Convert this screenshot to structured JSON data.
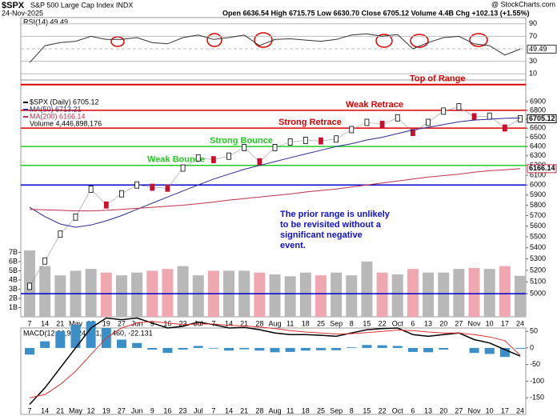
{
  "chart_data": {
    "type": "stock",
    "header": {
      "symbol": "$SPX",
      "name": "S&P 500 Large Cap Index INDX",
      "credit": "@ StockCharts.com",
      "date": "24-Nov-2025",
      "quote": "Open 6636.54   High 6715.75   Low 6630.70   Close 6705.12   Volume 4.4B   Chg +102.13 (+1.55%)"
    },
    "categories": [
      "7",
      "14",
      "21",
      "May",
      "12",
      "19",
      "27",
      "Jun",
      "9",
      "16",
      "23",
      "Jul",
      "7",
      "14",
      "21",
      "28",
      "Aug",
      "11",
      "18",
      "25",
      "Sep",
      "8",
      "15",
      "22",
      "Oct",
      "6",
      "13",
      "20",
      "27",
      "Nov",
      "10",
      "17",
      "24"
    ],
    "price": {
      "log": true,
      "ylim": [
        4810,
        7155
      ],
      "yticks": [
        5000,
        5100,
        5200,
        5300,
        5400,
        5500,
        5600,
        5700,
        5800,
        5900,
        6000,
        6100,
        6200,
        6300,
        6400,
        6500,
        6600,
        6700,
        6800,
        6900
      ],
      "series": [
        {
          "name": "$SPX (Daily) 6705.12",
          "color": "#000000",
          "values": [
            5062,
            5282,
            5525,
            5686,
            5958,
            5802,
            5912,
            6000,
            5977,
            5967,
            6173,
            6279,
            6260,
            6297,
            6389,
            6238,
            6389,
            6449,
            6466,
            6460,
            6481,
            6584,
            6664,
            6643,
            6715,
            6552,
            6664,
            6791,
            6840,
            6728,
            6734,
            6602,
            6705.12
          ]
        },
        {
          "name": "MA(50) 6713.21",
          "color": "#2b2b8f",
          "values": [
            5780,
            5690,
            5620,
            5590,
            5610,
            5650,
            5700,
            5760,
            5820,
            5880,
            5940,
            6000,
            6060,
            6110,
            6160,
            6200,
            6240,
            6280,
            6320,
            6360,
            6400,
            6430,
            6470,
            6500,
            6540,
            6580,
            6610,
            6640,
            6670,
            6690,
            6700,
            6710,
            6713.21
          ]
        },
        {
          "name": "MA(200) 6166.14",
          "color": "#c0304a",
          "values": [
            5760,
            5755,
            5750,
            5745,
            5745,
            5750,
            5760,
            5770,
            5780,
            5790,
            5800,
            5815,
            5830,
            5850,
            5865,
            5880,
            5895,
            5910,
            5930,
            5945,
            5960,
            5980,
            6000,
            6020,
            6040,
            6060,
            6080,
            6095,
            6110,
            6130,
            6145,
            6155,
            6166.14
          ]
        }
      ]
    },
    "volume": {
      "name": "Volume 4,446,898,176",
      "ylim": [
        0,
        25700000000
      ],
      "up_color": "#b8b8b8",
      "down_color": "#f0a8b0",
      "yticks": [
        {
          "value": 1000000000,
          "label": "1B"
        },
        {
          "value": 2000000000,
          "label": "2B"
        },
        {
          "value": 3000000000,
          "label": "3B"
        },
        {
          "value": 4000000000,
          "label": "4B"
        },
        {
          "value": 5000000000,
          "label": "5B"
        },
        {
          "value": 6000000000,
          "label": "6B"
        },
        {
          "value": 7000000000,
          "label": "7B"
        }
      ],
      "values": [
        7200000000,
        5500000000,
        4500000000,
        5000000000,
        5200000000,
        4800000000,
        4500000000,
        4800000000,
        5000000000,
        5200000000,
        5500000000,
        4500000000,
        5000000000,
        5000000000,
        5000000000,
        4800000000,
        4600000000,
        4400000000,
        4800000000,
        4500000000,
        4800000000,
        4500000000,
        6000000000,
        4800000000,
        4600000000,
        5200000000,
        4800000000,
        4800000000,
        5200000000,
        5300000000,
        5200000000,
        5500000000,
        4446898176
      ]
    },
    "levels": [
      {
        "label": "Top of Range",
        "value": 7100,
        "color": "#dd0000"
      },
      {
        "label": "Weak Retrace",
        "value": 6800,
        "color": "#dd0000"
      },
      {
        "label": "Strong Retrace",
        "value": 6600,
        "color": "#dd0000"
      },
      {
        "label": "Strong Bounce",
        "value": 6400,
        "color": "#22cc22"
      },
      {
        "label": "Weak Bounce",
        "value": 6200,
        "color": "#22cc22"
      },
      {
        "value": 6000,
        "color": "#0000cc"
      },
      {
        "value": 5000,
        "color": "#0000cc"
      }
    ],
    "note": [
      "The prior range is unlikely",
      "to be revisited without a",
      "significant negative",
      "event."
    ],
    "rsi": {
      "name": "RSI(14) 49.49",
      "ylim": [
        0,
        100
      ],
      "yticks": [
        90,
        70,
        50,
        30,
        10
      ],
      "color": "#333333",
      "values": [
        28,
        55,
        60,
        62,
        70,
        65,
        65,
        68,
        60,
        58,
        68,
        72,
        65,
        68,
        72,
        55,
        65,
        66,
        64,
        62,
        65,
        72,
        74,
        70,
        73,
        50,
        60,
        68,
        70,
        58,
        55,
        40,
        49.49
      ]
    },
    "macd": {
      "name": "MACD(12,26,9) -24.591, -2.460, -22.131",
      "ylim": [
        -200,
        60
      ],
      "yticks": [
        50,
        0,
        -50,
        -100,
        -150
      ],
      "series": [
        {
          "name": "MACD",
          "color": "#000000",
          "values": [
            -170,
            -120,
            -60,
            0,
            60,
            90,
            85,
            90,
            75,
            60,
            65,
            78,
            70,
            60,
            62,
            55,
            45,
            40,
            40,
            38,
            35,
            45,
            55,
            58,
            60,
            40,
            35,
            40,
            45,
            25,
            15,
            -5,
            -24.591
          ]
        },
        {
          "name": "Signal",
          "color": "#e03030",
          "values": [
            -150,
            -140,
            -110,
            -70,
            -20,
            30,
            60,
            75,
            80,
            75,
            70,
            72,
            72,
            68,
            66,
            63,
            58,
            52,
            48,
            45,
            42,
            43,
            46,
            50,
            54,
            52,
            48,
            45,
            45,
            40,
            33,
            22,
            -22.131
          ]
        }
      ],
      "histogram": {
        "color": "#3a8fc8",
        "values": [
          -20,
          20,
          50,
          70,
          80,
          60,
          25,
          15,
          -5,
          -15,
          -5,
          6,
          -2,
          -8,
          -4,
          -8,
          -13,
          -12,
          -8,
          -7,
          -7,
          2,
          9,
          8,
          6,
          -12,
          -13,
          -5,
          0,
          -15,
          -18,
          -27,
          -2.46
        ]
      }
    }
  }
}
